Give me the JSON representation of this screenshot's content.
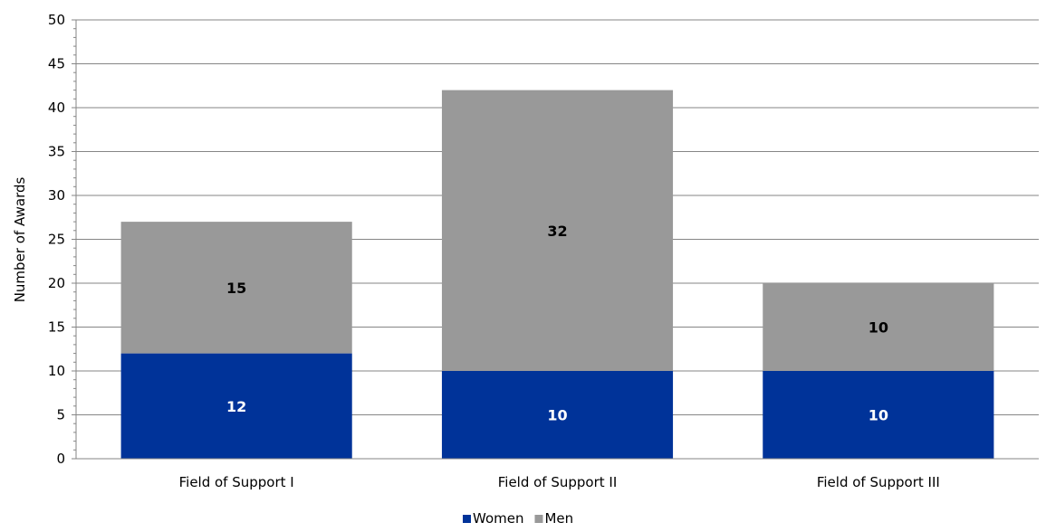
{
  "chart_data": {
    "type": "bar",
    "stacked": true,
    "categories": [
      "Field of Support I",
      "Field of Support II",
      "Field of Support III"
    ],
    "series": [
      {
        "name": "Women",
        "values": [
          12,
          10,
          10
        ],
        "color": "#003399",
        "label_color": "#ffffff"
      },
      {
        "name": "Men",
        "values": [
          15,
          32,
          10
        ],
        "color": "#999999",
        "label_color": "#000000"
      }
    ],
    "ylabel": "Number of Awards",
    "xlabel": "",
    "ylim": [
      0,
      50
    ],
    "yticks": [
      0,
      5,
      10,
      15,
      20,
      25,
      30,
      35,
      40,
      45,
      50
    ],
    "grid": true,
    "legend_position": "bottom"
  }
}
